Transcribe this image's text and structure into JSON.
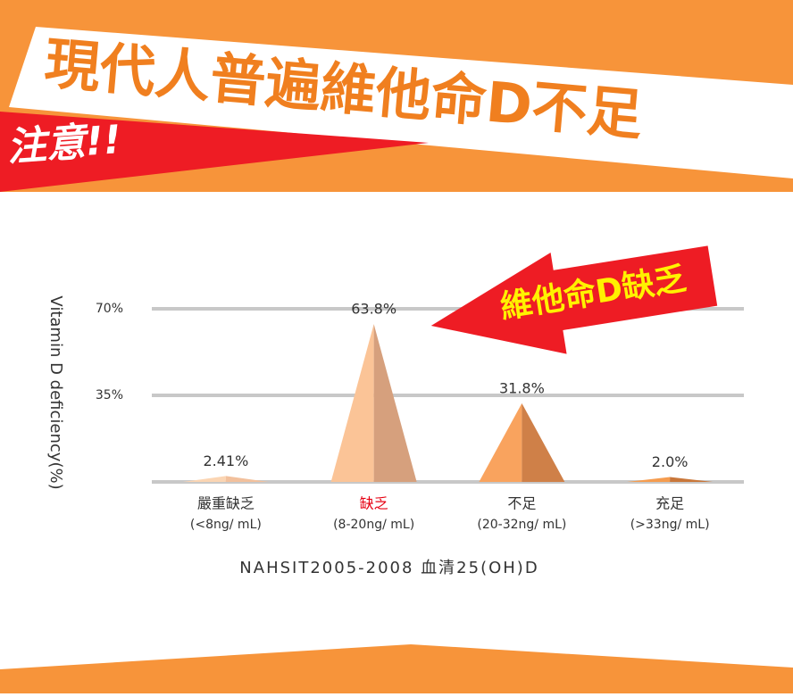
{
  "header": {
    "title": "現代人普遍維他命D不足",
    "badge": "注意!!"
  },
  "chart_data": {
    "type": "pyramid",
    "y_label": "Vitamin D deficiency(%)",
    "callout": "維他命D缺乏",
    "categories": [
      "嚴重缺乏",
      "缺乏",
      "不足",
      "充足"
    ],
    "category_ranges": [
      "(<8ng/ mL)",
      "(8-20ng/ mL)",
      "(20-32ng/ mL)",
      "(>33ng/ mL)"
    ],
    "values": [
      2.41,
      63.8,
      31.8,
      2.0
    ],
    "value_labels": [
      "2.41%",
      "63.8%",
      "31.8%",
      "2.0%"
    ],
    "colors": [
      [
        "#fbd5b3",
        "#f2c09c"
      ],
      [
        "#fbc497",
        "#d6a07d"
      ],
      [
        "#f9a35e",
        "#cf8048"
      ],
      [
        "#f59c4f",
        "#c9773a"
      ]
    ],
    "highlight_category": 1,
    "highlight_color": "#e60012",
    "ylim": [
      0,
      70
    ],
    "yticks": [
      {
        "value": 35,
        "label": "35%"
      },
      {
        "value": 70,
        "label": "70%"
      }
    ],
    "grid": true,
    "source": "NAHSIT2005-2008 血清25(OH)D"
  }
}
